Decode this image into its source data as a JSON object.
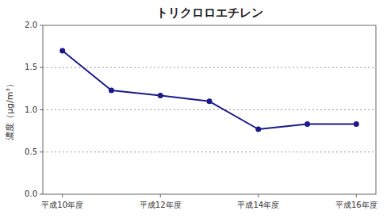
{
  "chart_data": {
    "type": "line",
    "title": "トリクロロエチレン",
    "ylabel": "濃度（μg/m³）",
    "x": [
      0,
      1,
      2,
      3,
      4,
      5,
      6
    ],
    "values": [
      1.7,
      1.23,
      1.17,
      1.1,
      0.77,
      0.83,
      0.83
    ],
    "xlim": [
      -0.4,
      6.4
    ],
    "xticks": [
      {
        "value": 0,
        "label": "平成10年度"
      },
      {
        "value": 2,
        "label": "平成12年度"
      },
      {
        "value": 4,
        "label": "平成14年度"
      },
      {
        "value": 6,
        "label": "平成16年度"
      }
    ],
    "ylim": [
      0.0,
      2.0
    ],
    "yticks": [
      {
        "value": 0.0,
        "label": "0.0"
      },
      0.5,
      {
        "value": 1.0,
        "label": "1.0"
      },
      1.5,
      {
        "value": 2.0,
        "label": "2.0"
      }
    ],
    "color": "#1a1a8c",
    "marker": "circle",
    "line_style": "solid",
    "grid": true
  }
}
